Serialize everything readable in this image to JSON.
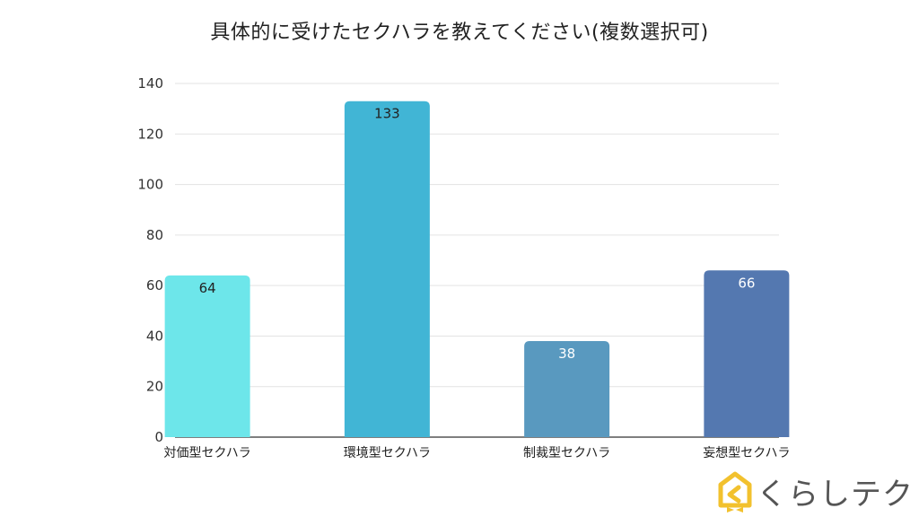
{
  "chart_data": {
    "type": "bar",
    "title": "具体的に受けたセクハラを教えてください(複数選択可)",
    "categories": [
      "対価型セクハラ",
      "環境型セクハラ",
      "制裁型セクハラ",
      "妄想型セクハラ"
    ],
    "values": [
      64,
      133,
      38,
      66
    ],
    "colors": [
      "#6de6ea",
      "#41b5d5",
      "#5999bf",
      "#5478b0"
    ],
    "label_colors": [
      "#222222",
      "#222222",
      "#ffffff",
      "#ffffff"
    ],
    "ylim": [
      0,
      140
    ],
    "yticks": [
      0,
      20,
      40,
      60,
      80,
      100,
      120,
      140
    ],
    "grid": true,
    "xlabel": "",
    "ylabel": ""
  },
  "logo": {
    "text": "くらしテク",
    "accent_color": "#f2c12e"
  }
}
